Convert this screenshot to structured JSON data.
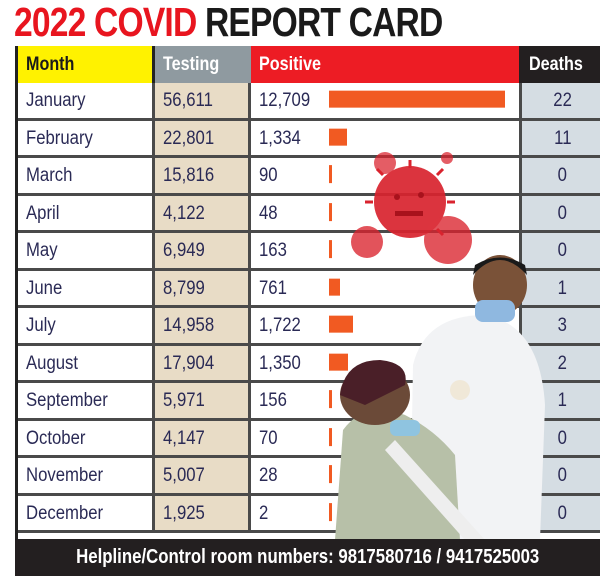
{
  "title": {
    "part1": "2022 COVID",
    "part2": "REPORT CARD"
  },
  "headers": {
    "month": "Month",
    "testing": "Testing",
    "positive": "Positive",
    "deaths": "Deaths"
  },
  "rows": [
    {
      "month": "January",
      "testing": "56,611",
      "positive": "12,709",
      "deaths": "22"
    },
    {
      "month": "February",
      "testing": "22,801",
      "positive": "1,334",
      "deaths": "11"
    },
    {
      "month": "March",
      "testing": "15,816",
      "positive": "90",
      "deaths": "0"
    },
    {
      "month": "April",
      "testing": "4,122",
      "positive": "48",
      "deaths": "0"
    },
    {
      "month": "May",
      "testing": "6,949",
      "positive": "163",
      "deaths": "0"
    },
    {
      "month": "June",
      "testing": "8,799",
      "positive": "761",
      "deaths": "1"
    },
    {
      "month": "July",
      "testing": "14,958",
      "positive": "1,722",
      "deaths": "3"
    },
    {
      "month": "August",
      "testing": "17,904",
      "positive": "1,350",
      "deaths": "2"
    },
    {
      "month": "September",
      "testing": "5,971",
      "positive": "156",
      "deaths": "1"
    },
    {
      "month": "October",
      "testing": "4,147",
      "positive": "70",
      "deaths": "0"
    },
    {
      "month": "November",
      "testing": "5,007",
      "positive": "28",
      "deaths": "0"
    },
    {
      "month": "December",
      "testing": "1,925",
      "positive": "2",
      "deaths": "0"
    }
  ],
  "footer": {
    "text": "Helpline/Control room numbers: 9817580716 / 9417525003"
  },
  "colors": {
    "title_red": "#e8151f",
    "month_header": "#fff200",
    "testing_header": "#8f9aa0",
    "positive_header": "#ed1c24",
    "deaths_header": "#231f20",
    "bar": "#f15a22",
    "testing_bg": "#e8dcc6",
    "deaths_bg": "#d5dde3"
  },
  "chart_data": {
    "type": "table",
    "title": "2022 COVID REPORT CARD",
    "columns": [
      "Month",
      "Testing",
      "Positive",
      "Deaths"
    ],
    "categories": [
      "January",
      "February",
      "March",
      "April",
      "May",
      "June",
      "July",
      "August",
      "September",
      "October",
      "November",
      "December"
    ],
    "series": [
      {
        "name": "Testing",
        "values": [
          56611,
          22801,
          15816,
          4122,
          6949,
          8799,
          14958,
          17904,
          5971,
          4147,
          5007,
          1925
        ]
      },
      {
        "name": "Positive",
        "values": [
          12709,
          1334,
          90,
          48,
          163,
          761,
          1722,
          1350,
          156,
          70,
          28,
          2
        ]
      },
      {
        "name": "Deaths",
        "values": [
          22,
          11,
          0,
          0,
          0,
          1,
          3,
          2,
          1,
          0,
          0,
          0
        ]
      }
    ],
    "bar_series": "Positive",
    "footer": "Helpline/Control room numbers: 9817580716 / 9417525003"
  }
}
